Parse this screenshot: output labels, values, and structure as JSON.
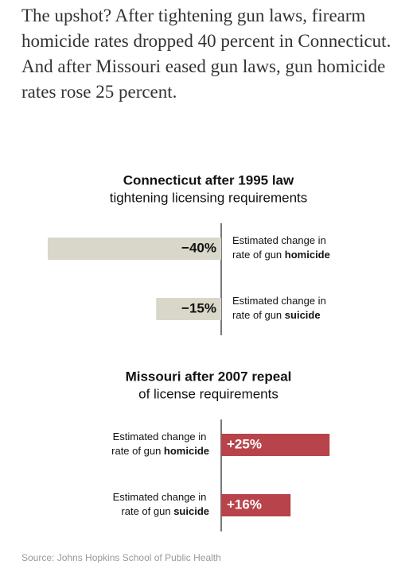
{
  "intro": "The upshot? After tightening gun laws, firearm homicide rates dropped 40 percent in Connecticut. And after Missouri eased gun laws, gun homicide rates rose 25 percent.",
  "chart_data": [
    {
      "type": "bar",
      "title": "Connecticut after 1995 law",
      "subtitle": "tightening licensing requirements",
      "categories": [
        "Estimated change in rate of gun homicide",
        "Estimated change in rate of gun suicide"
      ],
      "values": [
        -40,
        -15
      ],
      "value_labels": [
        "−40%",
        "−15%"
      ],
      "color": "#d9d7c9"
    },
    {
      "type": "bar",
      "title": "Missouri after 2007 repeal",
      "subtitle": "of license requirements",
      "categories": [
        "Estimated change in rate of gun homicide",
        "Estimated change in rate of gun suicide"
      ],
      "values": [
        25,
        16
      ],
      "value_labels": [
        "+25%",
        "+16%"
      ],
      "color": "#b8434a"
    }
  ],
  "source": "Source: Johns Hopkins School of Public Health"
}
